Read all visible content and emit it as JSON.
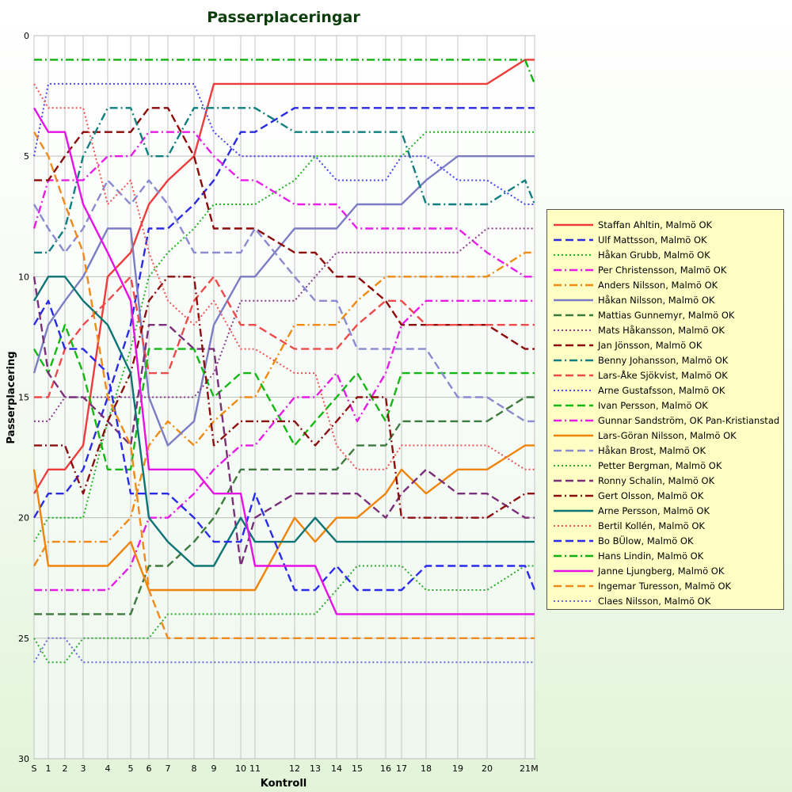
{
  "chart_data": {
    "type": "line",
    "title": "Passerplaceringar",
    "xlabel": "Kontroll",
    "ylabel": "Passerplacering",
    "ylim": [
      0,
      30
    ],
    "y_inverted": true,
    "yticks": [
      0,
      5,
      10,
      15,
      20,
      25,
      30
    ],
    "grid": true,
    "legend_position": "right",
    "categories": [
      "S",
      "1",
      "2",
      "3",
      "4",
      "5",
      "6",
      "7",
      "8",
      "9",
      "10",
      "11",
      "12",
      "13",
      "14",
      "15",
      "16",
      "17",
      "18",
      "19",
      "20",
      "21",
      "M"
    ],
    "x": [
      0,
      1,
      2,
      3,
      4,
      5,
      6,
      7,
      8,
      9,
      10,
      11,
      12,
      13,
      14,
      15,
      16,
      17,
      18,
      19,
      20,
      21,
      22
    ],
    "series": [
      {
        "name": "Staffan Ahltin, Malmö OK",
        "color": "#ef3b3b",
        "dash": "solid",
        "values": [
          19,
          18,
          18,
          17,
          10,
          9,
          7,
          6,
          5,
          2,
          2,
          2,
          2,
          2,
          2,
          2,
          2,
          2,
          2,
          2,
          2,
          1,
          1
        ]
      },
      {
        "name": "Ulf Mattsson, Malmö OK",
        "color": "#2b2bdf",
        "dash": "dash",
        "values": [
          20,
          19,
          19,
          18,
          15,
          12,
          8,
          8,
          7,
          6,
          4,
          4,
          3,
          3,
          3,
          3,
          3,
          3,
          3,
          3,
          3,
          3,
          3
        ]
      },
      {
        "name": "Håkan Grubb, Malmö OK",
        "color": "#1fb51f",
        "dash": "dot",
        "values": [
          21,
          20,
          20,
          20,
          16,
          13,
          10,
          9,
          8,
          7,
          7,
          7,
          6,
          5,
          5,
          5,
          5,
          5,
          4,
          4,
          4,
          4,
          4
        ]
      },
      {
        "name": "Per Christensson, Malmö OK",
        "color": "#e81ee8",
        "dash": "dashdot",
        "values": [
          8,
          6,
          6,
          6,
          5,
          5,
          4,
          4,
          4,
          5,
          6,
          6,
          7,
          7,
          7,
          8,
          8,
          8,
          8,
          8,
          9,
          10,
          10
        ]
      },
      {
        "name": "Anders Nilsson, Malmö OK",
        "color": "#f08a10",
        "dash": "dashdot",
        "values": [
          22,
          21,
          21,
          21,
          21,
          20,
          17,
          16,
          17,
          16,
          15,
          15,
          12,
          12,
          12,
          11,
          10,
          10,
          10,
          10,
          10,
          9,
          9
        ]
      },
      {
        "name": "Håkan Nilsson, Malmö OK",
        "color": "#7c7cc4",
        "dash": "solid",
        "values": [
          14,
          12,
          11,
          10,
          8,
          8,
          15,
          17,
          16,
          12,
          10,
          10,
          8,
          8,
          8,
          7,
          7,
          7,
          6,
          5,
          5,
          5,
          5
        ]
      },
      {
        "name": "Mattias Gunnemyr, Malmö OK",
        "color": "#3d7a3d",
        "dash": "dash",
        "values": [
          24,
          24,
          24,
          24,
          24,
          24,
          22,
          22,
          21,
          20,
          18,
          18,
          18,
          18,
          18,
          17,
          17,
          16,
          16,
          16,
          16,
          15,
          15
        ]
      },
      {
        "name": "Mats Håkansson, Malmö OK",
        "color": "#8a3d8a",
        "dash": "dot",
        "values": [
          16,
          16,
          15,
          15,
          15,
          15,
          15,
          15,
          15,
          14,
          11,
          11,
          11,
          10,
          9,
          9,
          9,
          9,
          9,
          9,
          8,
          8,
          8
        ]
      },
      {
        "name": "Jan Jönsson, Malmö OK",
        "color": "#8b0a0a",
        "dash": "dash",
        "values": [
          6,
          6,
          5,
          4,
          4,
          4,
          3,
          3,
          5,
          8,
          8,
          8,
          9,
          9,
          10,
          10,
          11,
          12,
          12,
          12,
          12,
          13,
          13
        ]
      },
      {
        "name": "Benny Johansson, Malmö OK",
        "color": "#0f7f7f",
        "dash": "dashdot",
        "values": [
          9,
          9,
          8,
          5,
          3,
          3,
          5,
          5,
          3,
          3,
          3,
          3,
          4,
          4,
          4,
          4,
          4,
          4,
          7,
          7,
          7,
          6,
          7
        ]
      },
      {
        "name": "Lars-Åke Sjökvist, Malmö OK",
        "color": "#ef4a4a",
        "dash": "dash",
        "values": [
          15,
          15,
          13,
          12,
          11,
          10,
          14,
          14,
          11,
          10,
          12,
          12,
          13,
          13,
          13,
          12,
          11,
          11,
          12,
          12,
          12,
          12,
          12
        ]
      },
      {
        "name": "Arne Gustafsson, Malmö OK",
        "color": "#4646ea",
        "dash": "dot",
        "values": [
          5,
          2,
          2,
          2,
          2,
          2,
          2,
          2,
          2,
          4,
          5,
          5,
          5,
          5,
          6,
          6,
          6,
          5,
          5,
          6,
          6,
          7,
          7
        ]
      },
      {
        "name": "Ivan Persson, Malmö OK",
        "color": "#14b814",
        "dash": "dash",
        "values": [
          13,
          14,
          12,
          14,
          18,
          18,
          13,
          13,
          13,
          15,
          14,
          14,
          17,
          16,
          15,
          14,
          16,
          14,
          14,
          14,
          14,
          14,
          14
        ]
      },
      {
        "name": "Gunnar Sandström, OK Pan-Kristianstad",
        "color": "#e61be6",
        "dash": "dashdot",
        "values": [
          23,
          23,
          23,
          23,
          23,
          22,
          20,
          20,
          19,
          18,
          17,
          17,
          15,
          15,
          14,
          16,
          14,
          12,
          11,
          11,
          11,
          11,
          11
        ]
      },
      {
        "name": "Lars-Göran Nilsson, Malmö OK",
        "color": "#f0840a",
        "dash": "solid",
        "values": [
          18,
          22,
          22,
          22,
          22,
          21,
          23,
          23,
          23,
          23,
          23,
          23,
          20,
          21,
          20,
          20,
          19,
          18,
          19,
          18,
          18,
          17,
          17
        ]
      },
      {
        "name": "Håkan Brost, Malmö OK",
        "color": "#8a8ad0",
        "dash": "dash",
        "values": [
          7,
          8,
          9,
          8,
          6,
          7,
          6,
          7,
          9,
          9,
          9,
          8,
          10,
          11,
          11,
          13,
          13,
          13,
          13,
          15,
          15,
          16,
          16
        ]
      },
      {
        "name": "Petter Bergman, Malmö OK",
        "color": "#2eaa2e",
        "dash": "dot",
        "values": [
          25,
          26,
          26,
          25,
          25,
          25,
          25,
          24,
          24,
          24,
          24,
          24,
          24,
          24,
          23,
          22,
          22,
          22,
          23,
          23,
          23,
          22,
          22
        ]
      },
      {
        "name": "Ronny Schalin, Malmö OK",
        "color": "#7a2f7a",
        "dash": "dash",
        "values": [
          10,
          14,
          15,
          15,
          16,
          17,
          12,
          12,
          13,
          13,
          22,
          20,
          19,
          19,
          19,
          19,
          20,
          19,
          18,
          19,
          19,
          20,
          20
        ]
      },
      {
        "name": "Gert Olsson, Malmö OK",
        "color": "#8b1010",
        "dash": "dashdot",
        "values": [
          17,
          17,
          17,
          19,
          16,
          14,
          11,
          10,
          10,
          17,
          16,
          16,
          16,
          17,
          16,
          15,
          15,
          20,
          20,
          20,
          20,
          19,
          19
        ]
      },
      {
        "name": "Arne Persson, Malmö OK",
        "color": "#0c7474",
        "dash": "solid",
        "values": [
          11,
          10,
          10,
          11,
          12,
          14,
          20,
          21,
          22,
          22,
          20,
          21,
          21,
          20,
          21,
          21,
          21,
          21,
          21,
          21,
          21,
          21,
          21
        ]
      },
      {
        "name": "Bertil Kollén, Malmö OK",
        "color": "#ee5555",
        "dash": "dot",
        "values": [
          2,
          3,
          3,
          3,
          7,
          6,
          9,
          11,
          12,
          11,
          13,
          13,
          14,
          14,
          17,
          18,
          18,
          17,
          17,
          17,
          17,
          18,
          18
        ]
      },
      {
        "name": "Bo BÜlow, Malmö OK",
        "color": "#2a2aee",
        "dash": "dash",
        "values": [
          12,
          11,
          13,
          13,
          14,
          19,
          19,
          19,
          20,
          21,
          21,
          19,
          23,
          23,
          22,
          23,
          23,
          23,
          22,
          22,
          22,
          22,
          23
        ]
      },
      {
        "name": "Hans Lindin, Malmö OK",
        "color": "#10b010",
        "dash": "dashdot",
        "values": [
          1,
          1,
          1,
          1,
          1,
          1,
          1,
          1,
          1,
          1,
          1,
          1,
          1,
          1,
          1,
          1,
          1,
          1,
          1,
          1,
          1,
          1,
          2
        ]
      },
      {
        "name": "Janne Ljungberg, Malmö OK",
        "color": "#e611e6",
        "dash": "solid",
        "values": [
          3,
          4,
          4,
          7,
          9,
          11,
          18,
          18,
          18,
          19,
          19,
          22,
          22,
          22,
          24,
          24,
          24,
          24,
          24,
          24,
          24,
          24,
          24
        ]
      },
      {
        "name": "Ingemar Turesson, Malmö OK",
        "color": "#f08a1a",
        "dash": "dash",
        "values": [
          4,
          5,
          7,
          9,
          15,
          17,
          23,
          25,
          25,
          25,
          25,
          25,
          25,
          25,
          25,
          25,
          25,
          25,
          25,
          25,
          25,
          25,
          25
        ]
      },
      {
        "name": "Claes Nilsson, Malmö OK",
        "color": "#6a6ad8",
        "dash": "dot",
        "values": [
          26,
          25,
          25,
          26,
          26,
          26,
          26,
          26,
          26,
          26,
          26,
          26,
          26,
          26,
          26,
          26,
          26,
          26,
          26,
          26,
          26,
          26,
          26
        ]
      }
    ]
  }
}
